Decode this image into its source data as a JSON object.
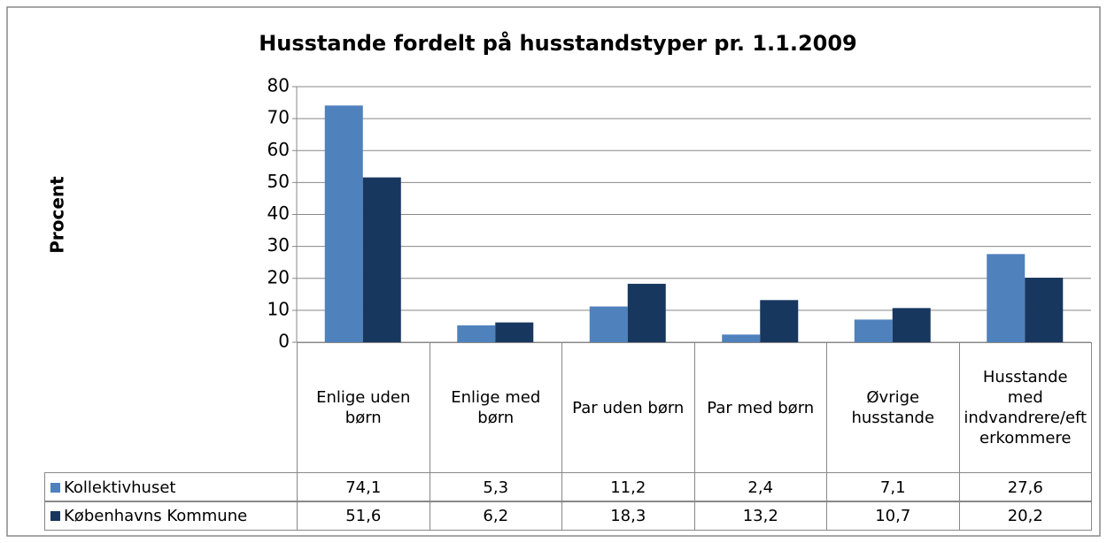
{
  "chart_data": {
    "type": "bar",
    "title": "Husstande fordelt på husstandstyper pr. 1.1.2009",
    "y_label": "Procent",
    "categories": [
      "Enlige uden børn",
      "Enlige med børn",
      "Par uden børn",
      "Par med børn",
      "Øvrige husstande",
      "Husstande med indvandrere/efterkommere"
    ],
    "series": [
      {
        "name": "Kollektivhuset",
        "color": "#4f81bd",
        "values": [
          74.1,
          5.3,
          11.2,
          2.4,
          7.1,
          27.6
        ],
        "value_labels": [
          "74,1",
          "5,3",
          "11,2",
          "2,4",
          "7,1",
          "27,6"
        ]
      },
      {
        "name": "Københavns Kommune",
        "color": "#17375e",
        "values": [
          51.6,
          6.2,
          18.3,
          13.2,
          10.7,
          20.2
        ],
        "value_labels": [
          "51,6",
          "6,2",
          "18,3",
          "13,2",
          "10,7",
          "20,2"
        ]
      }
    ],
    "ylim": [
      0,
      80
    ],
    "yticks": [
      0,
      10,
      20,
      30,
      40,
      50,
      60,
      70,
      80
    ],
    "grid": true
  }
}
